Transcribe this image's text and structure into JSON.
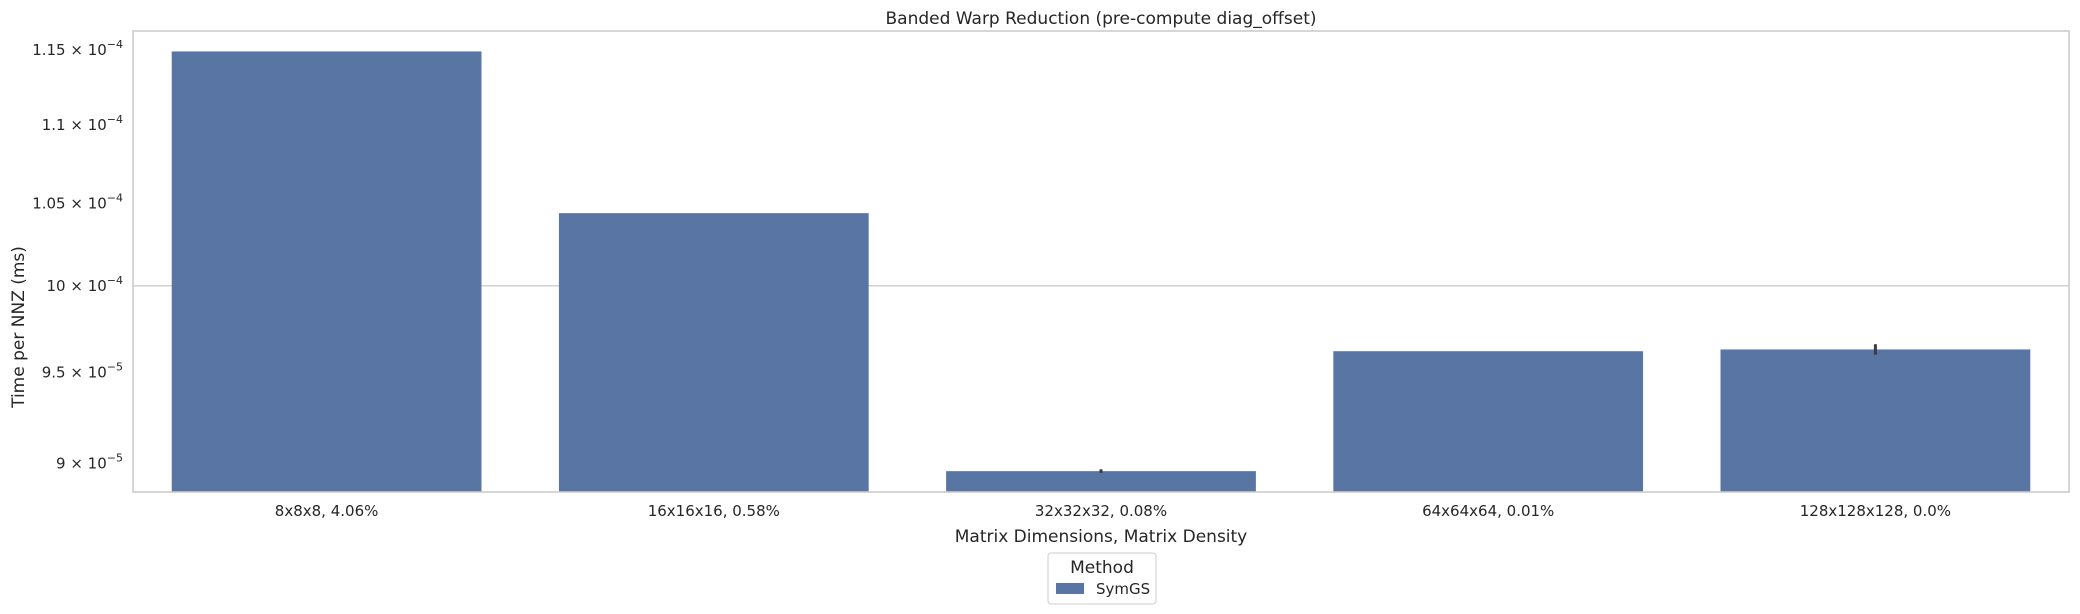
{
  "chart_data": {
    "type": "bar",
    "title": "Banded Warp Reduction (pre-compute diag_offset)",
    "xlabel": "Matrix Dimensions, Matrix Density",
    "ylabel": "Time per NNZ (ms)",
    "yscale": "log",
    "ylim": [
      8.85e-05,
      0.0001163
    ],
    "grid": "horizontal-at-1e-4",
    "categories": [
      "8x8x8, 4.06%",
      "16x16x16, 0.58%",
      "32x32x32, 0.08%",
      "64x64x64, 0.01%",
      "128x128x128, 0.0%"
    ],
    "series": [
      {
        "name": "SymGS",
        "color": "#5875a4",
        "values": [
          0.0001149,
          0.0001044,
          8.96e-05,
          9.62e-05,
          9.63e-05
        ],
        "error": [
          null,
          null,
          [
            8.95e-05,
            8.97e-05
          ],
          null,
          [
            9.6e-05,
            9.66e-05
          ]
        ]
      }
    ],
    "yticks": [
      {
        "value": 9e-05,
        "mantissa": "9",
        "exponent": "−5"
      },
      {
        "value": 9.5e-05,
        "mantissa": "9.5",
        "exponent": "−5"
      },
      {
        "value": 0.0001,
        "mantissa": "10",
        "exponent": "−4"
      },
      {
        "value": 0.000105,
        "mantissa": "1.05",
        "exponent": "−4"
      },
      {
        "value": 0.00011,
        "mantissa": "1.1",
        "exponent": "−4"
      },
      {
        "value": 0.000115,
        "mantissa": "1.15",
        "exponent": "−4"
      }
    ],
    "legend": {
      "title": "Method",
      "placement": "bottom-center"
    }
  }
}
